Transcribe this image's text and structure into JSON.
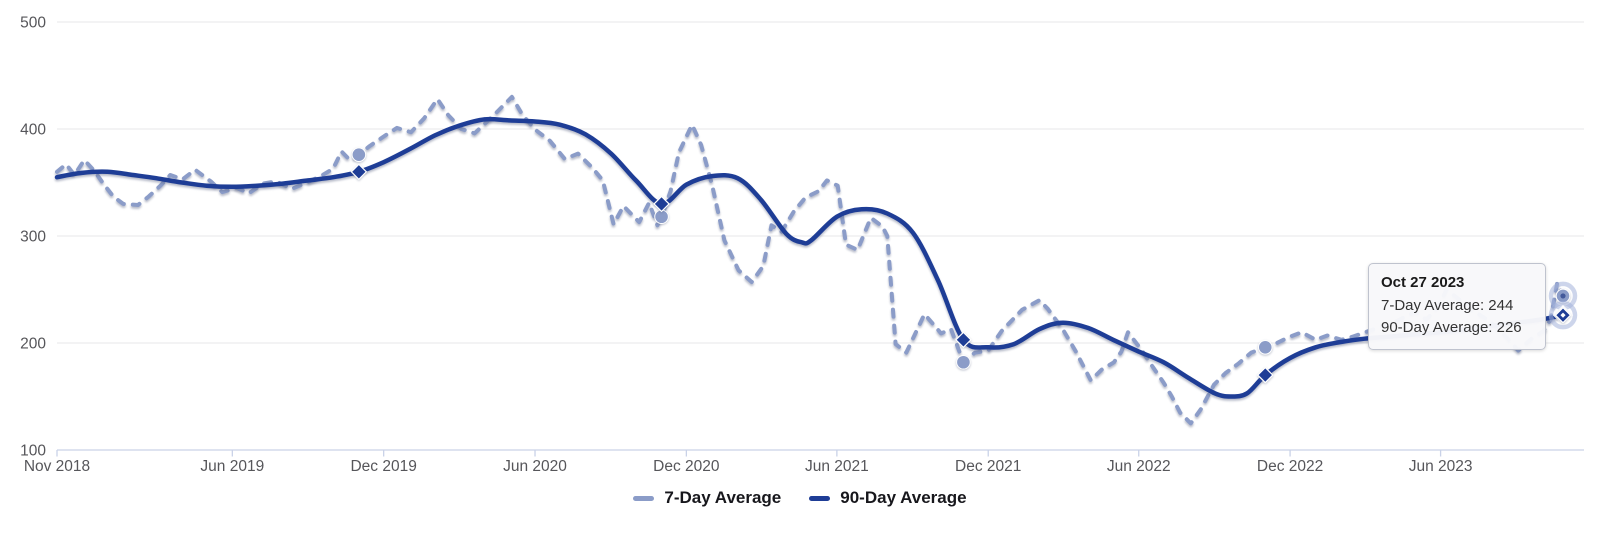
{
  "chart_data": {
    "type": "line",
    "title": "",
    "xlabel": "",
    "ylabel": "",
    "grid": "horizontal",
    "legend_position": "bottom-center",
    "x_domain": [
      "2018-11-01",
      "2023-10-27"
    ],
    "y_axis": {
      "min": 100,
      "max": 500,
      "ticks": [
        100,
        200,
        300,
        400,
        500
      ]
    },
    "x_ticks": [
      {
        "label": "Nov 2018",
        "date": "2018-11-01"
      },
      {
        "label": "Jun 2019",
        "date": "2019-06-01"
      },
      {
        "label": "Dec 2019",
        "date": "2019-12-01"
      },
      {
        "label": "Jun 2020",
        "date": "2020-06-01"
      },
      {
        "label": "Dec 2020",
        "date": "2020-12-01"
      },
      {
        "label": "Jun 2021",
        "date": "2021-06-01"
      },
      {
        "label": "Dec 2021",
        "date": "2021-12-01"
      },
      {
        "label": "Jun 2022",
        "date": "2022-06-01"
      },
      {
        "label": "Dec 2022",
        "date": "2022-12-01"
      },
      {
        "label": "Jun 2023",
        "date": "2023-06-01"
      },
      {
        "label": "",
        "date": "2023-12-01"
      }
    ],
    "halo_color": "#a4b2da",
    "series": [
      {
        "key": "7day",
        "name": "7-Day Average",
        "color": "#8b9cc8",
        "dash": true,
        "smooth": false,
        "marker_shape": "circle",
        "points": [
          [
            "2018-11-01",
            360
          ],
          [
            "2018-11-12",
            367
          ],
          [
            "2018-11-22",
            357
          ],
          [
            "2018-12-04",
            371
          ],
          [
            "2018-12-16",
            361
          ],
          [
            "2018-12-27",
            349
          ],
          [
            "2019-01-08",
            337
          ],
          [
            "2019-01-20",
            330
          ],
          [
            "2019-02-07",
            329
          ],
          [
            "2019-02-20",
            337
          ],
          [
            "2019-03-06",
            347
          ],
          [
            "2019-03-18",
            357
          ],
          [
            "2019-04-02",
            353
          ],
          [
            "2019-04-17",
            362
          ],
          [
            "2019-05-06",
            351
          ],
          [
            "2019-05-20",
            341
          ],
          [
            "2019-06-06",
            345
          ],
          [
            "2019-06-21",
            340
          ],
          [
            "2019-07-08",
            349
          ],
          [
            "2019-07-24",
            351
          ],
          [
            "2019-08-12",
            344
          ],
          [
            "2019-08-30",
            350
          ],
          [
            "2019-09-16",
            356
          ],
          [
            "2019-10-01",
            363
          ],
          [
            "2019-10-11",
            379
          ],
          [
            "2019-10-21",
            371
          ],
          [
            "2019-11-01",
            376
          ],
          [
            "2019-11-14",
            384
          ],
          [
            "2019-12-01",
            393
          ],
          [
            "2019-12-17",
            401
          ],
          [
            "2020-01-03",
            397
          ],
          [
            "2020-01-19",
            410
          ],
          [
            "2020-02-04",
            428
          ],
          [
            "2020-02-17",
            413
          ],
          [
            "2020-03-04",
            400
          ],
          [
            "2020-03-20",
            396
          ],
          [
            "2020-04-11",
            412
          ],
          [
            "2020-05-04",
            430
          ],
          [
            "2020-05-17",
            413
          ],
          [
            "2020-06-02",
            399
          ],
          [
            "2020-06-19",
            389
          ],
          [
            "2020-07-07",
            372
          ],
          [
            "2020-07-23",
            377
          ],
          [
            "2020-08-09",
            364
          ],
          [
            "2020-08-22",
            352
          ],
          [
            "2020-09-04",
            311
          ],
          [
            "2020-09-16",
            328
          ],
          [
            "2020-10-05",
            313
          ],
          [
            "2020-10-17",
            331
          ],
          [
            "2020-10-27",
            310
          ],
          [
            "2020-11-01",
            318
          ],
          [
            "2020-11-12",
            342
          ],
          [
            "2020-11-22",
            378
          ],
          [
            "2020-12-08",
            404
          ],
          [
            "2020-12-19",
            385
          ],
          [
            "2021-01-01",
            348
          ],
          [
            "2021-01-16",
            296
          ],
          [
            "2021-02-02",
            268
          ],
          [
            "2021-02-18",
            257
          ],
          [
            "2021-03-04",
            272
          ],
          [
            "2021-03-14",
            310
          ],
          [
            "2021-03-26",
            304
          ],
          [
            "2021-04-10",
            323
          ],
          [
            "2021-04-24",
            336
          ],
          [
            "2021-05-10",
            342
          ],
          [
            "2021-05-20",
            352
          ],
          [
            "2021-06-02",
            347
          ],
          [
            "2021-06-12",
            292
          ],
          [
            "2021-06-26",
            287
          ],
          [
            "2021-07-12",
            317
          ],
          [
            "2021-07-26",
            309
          ],
          [
            "2021-08-01",
            300
          ],
          [
            "2021-08-11",
            199
          ],
          [
            "2021-08-24",
            191
          ],
          [
            "2021-09-15",
            227
          ],
          [
            "2021-10-05",
            209
          ],
          [
            "2021-10-17",
            213
          ],
          [
            "2021-11-01",
            182
          ],
          [
            "2021-11-15",
            191
          ],
          [
            "2021-12-01",
            193
          ],
          [
            "2021-12-17",
            211
          ],
          [
            "2022-01-11",
            231
          ],
          [
            "2022-02-01",
            240
          ],
          [
            "2022-02-11",
            232
          ],
          [
            "2022-03-01",
            213
          ],
          [
            "2022-03-17",
            192
          ],
          [
            "2022-04-04",
            165
          ],
          [
            "2022-04-17",
            175
          ],
          [
            "2022-05-02",
            182
          ],
          [
            "2022-05-11",
            192
          ],
          [
            "2022-05-19",
            210
          ],
          [
            "2022-06-05",
            193
          ],
          [
            "2022-06-15",
            181
          ],
          [
            "2022-07-01",
            163
          ],
          [
            "2022-07-11",
            150
          ],
          [
            "2022-07-21",
            135
          ],
          [
            "2022-08-03",
            125
          ],
          [
            "2022-08-15",
            138
          ],
          [
            "2022-08-31",
            161
          ],
          [
            "2022-09-14",
            172
          ],
          [
            "2022-09-30",
            181
          ],
          [
            "2022-10-15",
            191
          ],
          [
            "2022-11-01",
            196
          ],
          [
            "2022-11-15",
            200
          ],
          [
            "2022-12-01",
            206
          ],
          [
            "2022-12-15",
            210
          ],
          [
            "2023-01-01",
            203
          ],
          [
            "2023-01-15",
            207
          ],
          [
            "2023-02-01",
            203
          ],
          [
            "2023-02-15",
            206
          ],
          [
            "2023-03-02",
            210
          ],
          [
            "2023-03-16",
            214
          ],
          [
            "2023-03-31",
            217
          ],
          [
            "2023-04-15",
            223
          ],
          [
            "2023-05-01",
            229
          ],
          [
            "2023-05-15",
            222
          ],
          [
            "2023-05-31",
            236
          ],
          [
            "2023-06-08",
            250
          ],
          [
            "2023-06-23",
            241
          ],
          [
            "2023-07-09",
            231
          ],
          [
            "2023-07-31",
            220
          ],
          [
            "2023-08-19",
            206
          ],
          [
            "2023-09-03",
            193
          ],
          [
            "2023-09-19",
            204
          ],
          [
            "2023-10-03",
            211
          ],
          [
            "2023-10-12",
            222
          ],
          [
            "2023-10-20",
            256
          ],
          [
            "2023-10-27",
            244
          ]
        ]
      },
      {
        "key": "90day",
        "name": "90-Day Average",
        "color": "#1e3d96",
        "dash": false,
        "smooth": true,
        "marker_shape": "diamond",
        "points": [
          [
            "2018-11-01",
            355
          ],
          [
            "2018-12-01",
            359
          ],
          [
            "2019-01-01",
            360
          ],
          [
            "2019-02-01",
            357
          ],
          [
            "2019-03-01",
            354
          ],
          [
            "2019-04-01",
            350
          ],
          [
            "2019-05-01",
            347
          ],
          [
            "2019-06-01",
            346
          ],
          [
            "2019-07-01",
            347
          ],
          [
            "2019-08-01",
            349
          ],
          [
            "2019-09-01",
            352
          ],
          [
            "2019-10-01",
            355
          ],
          [
            "2019-11-01",
            360
          ],
          [
            "2019-12-01",
            369
          ],
          [
            "2020-01-01",
            381
          ],
          [
            "2020-02-01",
            394
          ],
          [
            "2020-03-01",
            403
          ],
          [
            "2020-04-01",
            409
          ],
          [
            "2020-05-01",
            408
          ],
          [
            "2020-06-01",
            407
          ],
          [
            "2020-07-01",
            404
          ],
          [
            "2020-08-01",
            395
          ],
          [
            "2020-09-01",
            377
          ],
          [
            "2020-10-01",
            352
          ],
          [
            "2020-11-01",
            330
          ],
          [
            "2020-12-01",
            348
          ],
          [
            "2021-01-01",
            356
          ],
          [
            "2021-02-01",
            354
          ],
          [
            "2021-03-01",
            334
          ],
          [
            "2021-04-01",
            302
          ],
          [
            "2021-04-20",
            294
          ],
          [
            "2021-05-01",
            296
          ],
          [
            "2021-06-01",
            318
          ],
          [
            "2021-07-01",
            325
          ],
          [
            "2021-08-01",
            321
          ],
          [
            "2021-09-01",
            303
          ],
          [
            "2021-10-01",
            259
          ],
          [
            "2021-11-01",
            203
          ],
          [
            "2021-12-01",
            196
          ],
          [
            "2022-01-01",
            199
          ],
          [
            "2022-02-01",
            213
          ],
          [
            "2022-03-01",
            219
          ],
          [
            "2022-04-01",
            214
          ],
          [
            "2022-05-01",
            203
          ],
          [
            "2022-06-01",
            192
          ],
          [
            "2022-07-01",
            182
          ],
          [
            "2022-08-01",
            167
          ],
          [
            "2022-09-01",
            153
          ],
          [
            "2022-09-20",
            150
          ],
          [
            "2022-10-10",
            153
          ],
          [
            "2022-11-01",
            170
          ],
          [
            "2022-12-01",
            186
          ],
          [
            "2023-01-01",
            196
          ],
          [
            "2023-02-01",
            201
          ],
          [
            "2023-03-01",
            204
          ],
          [
            "2023-04-01",
            206
          ],
          [
            "2023-05-01",
            208
          ],
          [
            "2023-06-01",
            210
          ],
          [
            "2023-07-01",
            213
          ],
          [
            "2023-08-01",
            216
          ],
          [
            "2023-09-01",
            219
          ],
          [
            "2023-10-01",
            222
          ],
          [
            "2023-10-27",
            226
          ]
        ]
      }
    ],
    "markers": [
      {
        "date": "2019-11-01",
        "series": "7day",
        "value": 376,
        "halo": false
      },
      {
        "date": "2019-11-01",
        "series": "90day",
        "value": 360,
        "halo": false
      },
      {
        "date": "2020-11-01",
        "series": "7day",
        "value": 318,
        "halo": false
      },
      {
        "date": "2020-11-01",
        "series": "90day",
        "value": 330,
        "halo": false
      },
      {
        "date": "2021-11-01",
        "series": "7day",
        "value": 182,
        "halo": false
      },
      {
        "date": "2021-11-01",
        "series": "90day",
        "value": 203,
        "halo": false
      },
      {
        "date": "2022-11-01",
        "series": "7day",
        "value": 196,
        "halo": false
      },
      {
        "date": "2022-11-01",
        "series": "90day",
        "value": 170,
        "halo": false
      },
      {
        "date": "2023-10-27",
        "series": "7day",
        "value": 244,
        "halo": true
      },
      {
        "date": "2023-10-27",
        "series": "90day",
        "value": 226,
        "halo": true
      }
    ],
    "tooltip": {
      "title": "Oct 27 2023",
      "line1": "7-Day Average: 244",
      "line2": "90-Day Average: 226"
    }
  }
}
